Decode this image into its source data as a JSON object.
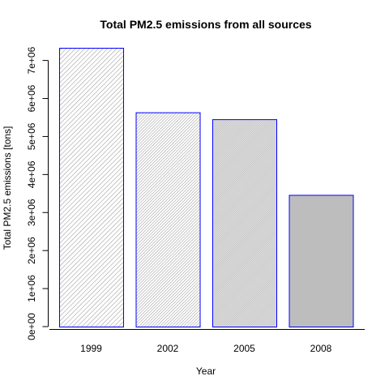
{
  "chart_data": {
    "type": "bar",
    "title": "Total PM2.5 emissions from all sources",
    "xlabel": "Year",
    "ylabel": "Total PM2.5 emissions [tons]",
    "categories": [
      "1999",
      "2002",
      "2005",
      "2008"
    ],
    "values": [
      7332967,
      5635780,
      5454703,
      3464206
    ],
    "ylim": [
      0,
      7332967
    ],
    "yticks": [
      0,
      1000000,
      2000000,
      3000000,
      4000000,
      5000000,
      6000000,
      7000000
    ],
    "ytick_labels": [
      "0e+00",
      "1e+06",
      "2e+06",
      "3e+06",
      "4e+06",
      "5e+06",
      "6e+06",
      "7e+06"
    ],
    "grid": false,
    "legend": "none",
    "bar_border_color": "#0000ff",
    "bar_fill_colors": [
      "#c8c8c8",
      "#c9c9c9",
      "#cbcbcb",
      "#bdbdbd"
    ],
    "bar_hatch_densities": [
      "dense",
      "fine",
      "very fine",
      "solid"
    ]
  }
}
